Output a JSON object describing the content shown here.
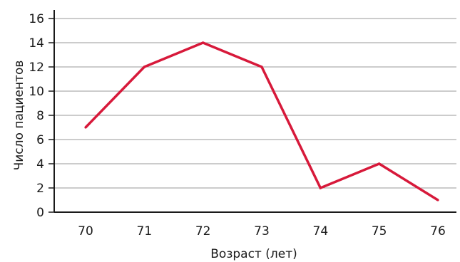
{
  "chart_data": {
    "type": "line",
    "title": "",
    "xlabel": "Возраст (лет)",
    "ylabel": "Число пациентов",
    "categories": [
      "70",
      "71",
      "72",
      "73",
      "74",
      "75",
      "76"
    ],
    "series": [
      {
        "values": [
          7,
          12,
          14,
          12,
          2,
          4,
          1
        ],
        "color": "#d7193a"
      }
    ],
    "ylim": [
      0,
      16
    ],
    "yticks": [
      "0",
      "2",
      "4",
      "6",
      "8",
      "10",
      "12",
      "14",
      "16"
    ],
    "grid": "horizontal",
    "legend": "none",
    "colors": {
      "grid": "#9a9a9a",
      "axis": "#1a1a1a",
      "series": "#d7193a"
    }
  }
}
